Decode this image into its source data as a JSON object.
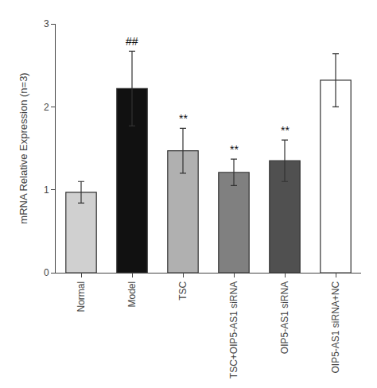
{
  "chart_data": {
    "type": "bar",
    "categories": [
      "Normal",
      "Model",
      "TSC",
      "TSC+OIP5-AS1 siRNA",
      "OIP5-AS1 siRNA",
      "OIP5-AS1 siRNA+NC"
    ],
    "values": [
      0.97,
      2.22,
      1.47,
      1.21,
      1.35,
      2.32
    ],
    "errors": [
      0.13,
      0.45,
      0.27,
      0.16,
      0.25,
      0.32
    ],
    "colors": [
      "#d0d0d0",
      "#111111",
      "#b0b0b0",
      "#808080",
      "#505050",
      "#ffffff"
    ],
    "ylabel": "mRNA Relative Expression (n=3)",
    "ylim": [
      0,
      3
    ],
    "yticks": [
      0,
      1,
      2,
      3
    ],
    "grid": false,
    "annotations": [
      {
        "text": "##",
        "category": "Model"
      },
      {
        "text": "**",
        "category": "TSC"
      },
      {
        "text": "**",
        "category": "TSC+OIP5-AS1 siRNA"
      },
      {
        "text": "**",
        "category": "OIP5-AS1 siRNA"
      }
    ]
  }
}
